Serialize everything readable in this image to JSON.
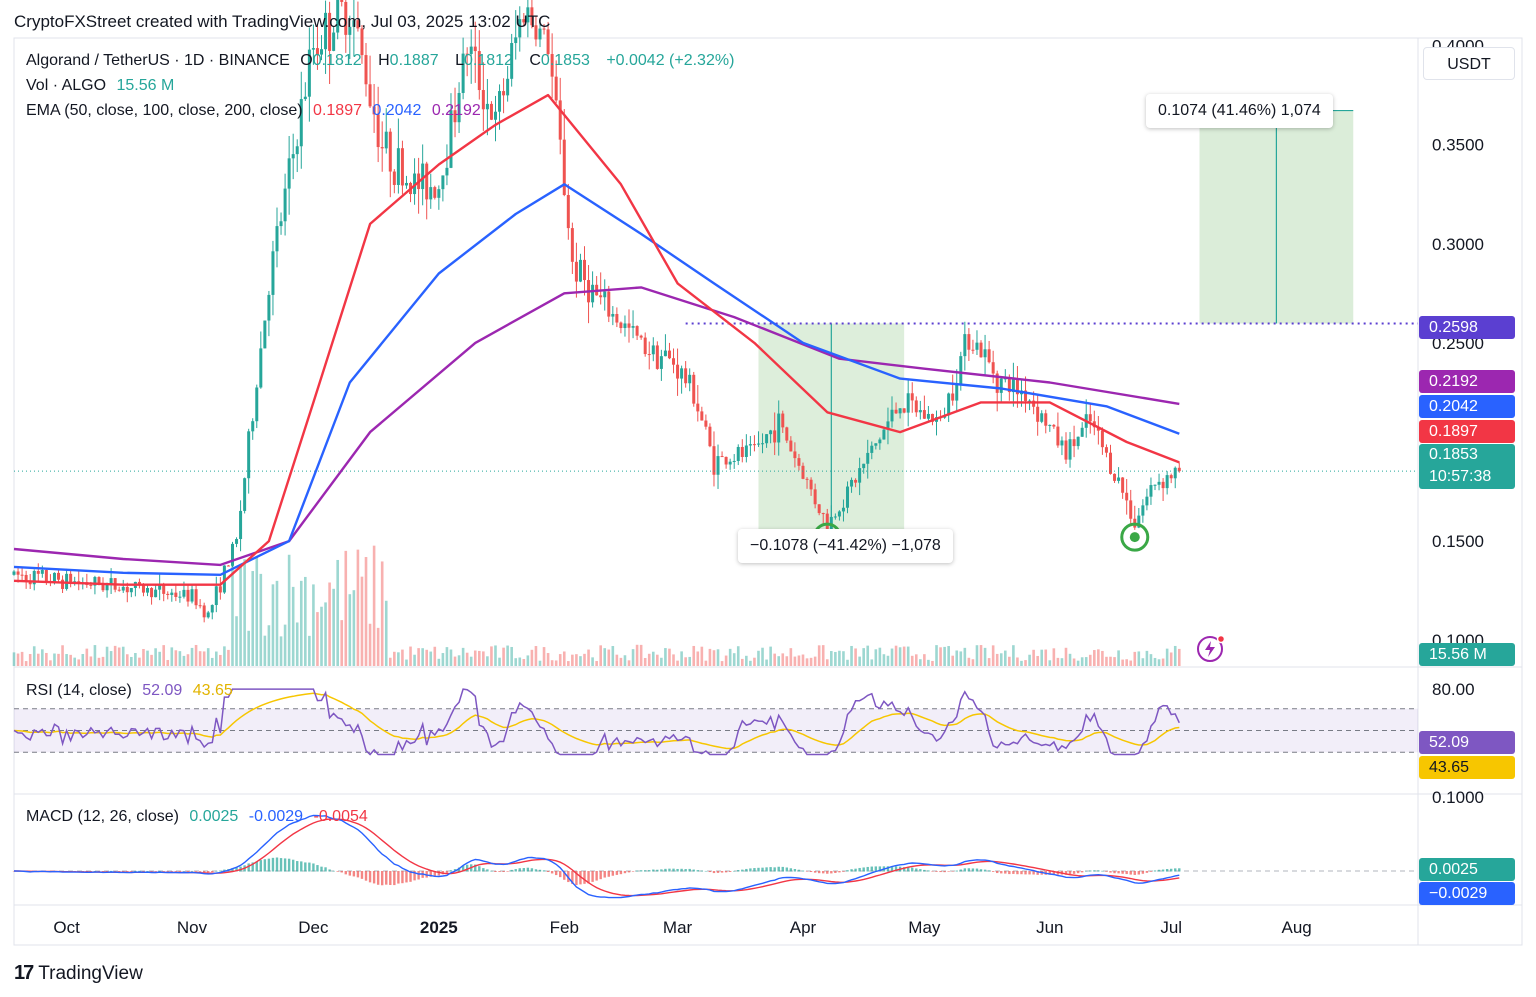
{
  "credit": "CryptoFXStreet created with TradingView.com, Jul 03, 2025 13:02 UTC",
  "brand": "TradingView",
  "symbol": {
    "title": "Algorand / TetherUS · 1D · BINANCE",
    "o_label": "O",
    "o": "0.1812",
    "h_label": "H",
    "h": "0.1887",
    "l_label": "L",
    "l": "0.1812",
    "c_label": "C",
    "c": "0.1853",
    "change": "+0.0042 (+2.32%)"
  },
  "volume": {
    "label": "Vol · ALGO",
    "value": "15.56 M",
    "badge": "15.56 M"
  },
  "ema": {
    "label": "EMA (50, close, 100, close, 200, close)",
    "ema50": "0.1897",
    "ema100": "0.2042",
    "ema200": "0.2192"
  },
  "rsi": {
    "label": "RSI (14, close)",
    "rsi": "52.09",
    "ma": "43.65"
  },
  "macd": {
    "label": "MACD (12, 26, close)",
    "hist": "0.0025",
    "macd": "-0.0029",
    "signal": "-0.0054"
  },
  "axis": {
    "currency": "USDT",
    "price_ticks": [
      "0.4000",
      "0.3500",
      "0.3000",
      "0.2500",
      "0.1500",
      "0.1000"
    ],
    "rsi_ticks": [
      "80.00"
    ],
    "macd_ticks": [
      "0.1000"
    ],
    "time_ticks": [
      "Oct",
      "Nov",
      "Dec",
      "2025",
      "Feb",
      "Mar",
      "Apr",
      "May",
      "Jun",
      "Jul",
      "Aug"
    ]
  },
  "badges": {
    "resistance": "0.2598",
    "ema200": "0.2192",
    "ema100": "0.2042",
    "ema50": "0.1897",
    "price": "0.1853",
    "countdown": "10:57:38",
    "rsi": "52.09",
    "rsi_ma": "43.65",
    "macd_hist": "0.0025",
    "macd_line": "−0.0029"
  },
  "measures": {
    "up": "0.1074 (41.46%) 1,074",
    "down": "−0.1078 (−41.42%) −1,078"
  },
  "colors": {
    "up": "#26a69a",
    "down": "#ef5350",
    "ema50": "#f23645",
    "ema100": "#2962ff",
    "ema200": "#9c27b0",
    "rsi": "#7e57c2",
    "rsi_ma": "#f7c600",
    "resistance": "#5b3fd1",
    "measure_fill": "#d7ebd5",
    "support_circle": "#3aa846"
  },
  "icons": {
    "alert": "bolt-icon",
    "logo": "tradingview-logo-icon"
  },
  "chart_data": {
    "type": "candlestick",
    "title": "Algorand / TetherUS · 1D · BINANCE",
    "x_range": [
      "2024-09-18",
      "2025-08-31"
    ],
    "y_range": [
      0.087,
      0.4038
    ],
    "key_points": [
      {
        "date": "2024-09-18",
        "price": 0.133
      },
      {
        "date": "2024-10-01",
        "price": 0.13
      },
      {
        "date": "2024-10-15",
        "price": 0.127
      },
      {
        "date": "2024-11-01",
        "price": 0.122
      },
      {
        "date": "2024-11-05",
        "price": 0.113
      },
      {
        "date": "2024-11-12",
        "price": 0.15
      },
      {
        "date": "2024-11-20",
        "price": 0.28
      },
      {
        "date": "2024-12-01",
        "price": 0.4
      },
      {
        "date": "2024-12-10",
        "price": 0.42
      },
      {
        "date": "2024-12-18",
        "price": 0.35
      },
      {
        "date": "2024-12-25",
        "price": 0.33
      },
      {
        "date": "2025-01-01",
        "price": 0.33
      },
      {
        "date": "2025-01-08",
        "price": 0.4
      },
      {
        "date": "2025-01-15",
        "price": 0.36
      },
      {
        "date": "2025-01-22",
        "price": 0.42
      },
      {
        "date": "2025-01-28",
        "price": 0.4
      },
      {
        "date": "2025-02-01",
        "price": 0.33
      },
      {
        "date": "2025-02-03",
        "price": 0.29
      },
      {
        "date": "2025-02-10",
        "price": 0.27
      },
      {
        "date": "2025-02-20",
        "price": 0.25
      },
      {
        "date": "2025-02-28",
        "price": 0.24
      },
      {
        "date": "2025-03-05",
        "price": 0.225
      },
      {
        "date": "2025-03-10",
        "price": 0.19
      },
      {
        "date": "2025-03-20",
        "price": 0.195
      },
      {
        "date": "2025-03-26",
        "price": 0.21
      },
      {
        "date": "2025-04-07",
        "price": 0.158
      },
      {
        "date": "2025-04-15",
        "price": 0.185
      },
      {
        "date": "2025-04-25",
        "price": 0.22
      },
      {
        "date": "2025-05-05",
        "price": 0.21
      },
      {
        "date": "2025-05-12",
        "price": 0.255
      },
      {
        "date": "2025-05-20",
        "price": 0.23
      },
      {
        "date": "2025-05-26",
        "price": 0.225
      },
      {
        "date": "2025-06-05",
        "price": 0.195
      },
      {
        "date": "2025-06-11",
        "price": 0.21
      },
      {
        "date": "2025-06-18",
        "price": 0.18
      },
      {
        "date": "2025-06-22",
        "price": 0.16
      },
      {
        "date": "2025-06-27",
        "price": 0.18
      },
      {
        "date": "2025-07-03",
        "price": 0.1853
      }
    ],
    "ema50_points": [
      [
        "2024-09-18",
        0.13
      ],
      [
        "2024-10-15",
        0.128
      ],
      [
        "2024-11-08",
        0.128
      ],
      [
        "2024-11-20",
        0.15
      ],
      [
        "2024-12-01",
        0.22
      ],
      [
        "2024-12-15",
        0.31
      ],
      [
        "2025-01-01",
        0.34
      ],
      [
        "2025-01-15",
        0.36
      ],
      [
        "2025-01-28",
        0.375
      ],
      [
        "2025-02-15",
        0.33
      ],
      [
        "2025-03-01",
        0.28
      ],
      [
        "2025-03-20",
        0.25
      ],
      [
        "2025-04-07",
        0.215
      ],
      [
        "2025-04-25",
        0.205
      ],
      [
        "2025-05-15",
        0.22
      ],
      [
        "2025-06-01",
        0.22
      ],
      [
        "2025-06-20",
        0.2
      ],
      [
        "2025-07-03",
        0.1897
      ]
    ],
    "ema100_points": [
      [
        "2024-09-18",
        0.137
      ],
      [
        "2024-10-15",
        0.134
      ],
      [
        "2024-11-08",
        0.133
      ],
      [
        "2024-11-25",
        0.15
      ],
      [
        "2024-12-10",
        0.23
      ],
      [
        "2025-01-01",
        0.285
      ],
      [
        "2025-01-20",
        0.315
      ],
      [
        "2025-02-01",
        0.33
      ],
      [
        "2025-02-20",
        0.305
      ],
      [
        "2025-03-10",
        0.28
      ],
      [
        "2025-04-01",
        0.25
      ],
      [
        "2025-04-25",
        0.232
      ],
      [
        "2025-05-20",
        0.227
      ],
      [
        "2025-06-15",
        0.218
      ],
      [
        "2025-07-03",
        0.2042
      ]
    ],
    "ema200_points": [
      [
        "2024-09-18",
        0.146
      ],
      [
        "2024-10-15",
        0.141
      ],
      [
        "2024-11-08",
        0.138
      ],
      [
        "2024-11-25",
        0.15
      ],
      [
        "2024-12-15",
        0.205
      ],
      [
        "2025-01-10",
        0.25
      ],
      [
        "2025-02-01",
        0.275
      ],
      [
        "2025-02-20",
        0.278
      ],
      [
        "2025-03-15",
        0.263
      ],
      [
        "2025-04-10",
        0.242
      ],
      [
        "2025-05-01",
        0.237
      ],
      [
        "2025-06-01",
        0.23
      ],
      [
        "2025-07-03",
        0.2192
      ]
    ],
    "resistance": 0.2598,
    "support_marks": [
      {
        "date": "2025-04-07",
        "price": 0.152
      },
      {
        "date": "2025-06-22",
        "price": 0.152
      }
    ],
    "measure_down": {
      "from_date": "2025-03-21",
      "to_date": "2025-04-26",
      "from": 0.2598,
      "to": 0.152,
      "label": "−0.1078 (−41.42%) −1,078"
    },
    "measure_up": {
      "from_date": "2025-07-08",
      "to_date": "2025-08-15",
      "from": 0.2598,
      "to": 0.3672,
      "label": "0.1074 (41.46%) 1,074"
    },
    "rsi_values": {
      "current": 52.09,
      "ma": 43.65,
      "band": [
        30,
        70
      ]
    },
    "macd_values": {
      "hist": 0.0025,
      "macd": -0.0029,
      "signal": -0.0054
    }
  }
}
